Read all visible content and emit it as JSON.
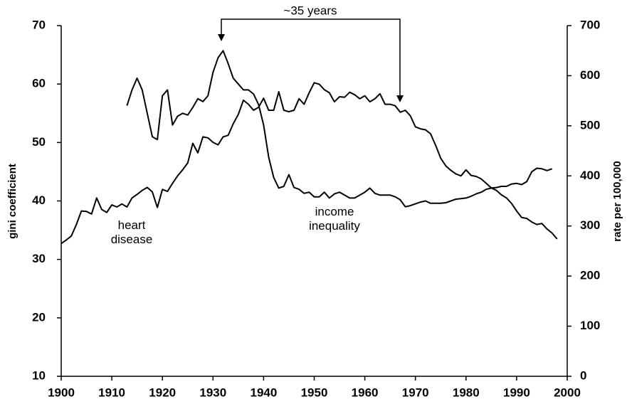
{
  "chart_data": {
    "type": "line",
    "annotation": "~35 years",
    "ylabel": "gini coefficient",
    "y2label": "rate per 100,000",
    "x": [
      1900,
      1901,
      1902,
      1903,
      1904,
      1905,
      1906,
      1907,
      1908,
      1909,
      1910,
      1911,
      1912,
      1913,
      1914,
      1915,
      1916,
      1917,
      1918,
      1919,
      1920,
      1921,
      1922,
      1923,
      1924,
      1925,
      1926,
      1927,
      1928,
      1929,
      1930,
      1931,
      1932,
      1933,
      1934,
      1935,
      1936,
      1937,
      1938,
      1939,
      1940,
      1941,
      1942,
      1943,
      1944,
      1945,
      1946,
      1947,
      1948,
      1949,
      1950,
      1951,
      1952,
      1953,
      1954,
      1955,
      1956,
      1957,
      1958,
      1959,
      1960,
      1961,
      1962,
      1963,
      1964,
      1965,
      1966,
      1967,
      1968,
      1969,
      1970,
      1971,
      1972,
      1973,
      1974,
      1975,
      1976,
      1977,
      1978,
      1979,
      1980,
      1981,
      1982,
      1983,
      1984,
      1985,
      1986,
      1987,
      1988,
      1989,
      1990,
      1991,
      1992,
      1993,
      1994,
      1995,
      1996,
      1997,
      1998
    ],
    "series": [
      {
        "name": "heart disease",
        "color": "#000000",
        "axis": "y2",
        "values": [
          265,
          272,
          280,
          303,
          330,
          329,
          324,
          356,
          333,
          327,
          342,
          338,
          344,
          338,
          356,
          363,
          371,
          377,
          368,
          337,
          373,
          369,
          385,
          400,
          412,
          426,
          465,
          446,
          478,
          476,
          467,
          462,
          478,
          481,
          504,
          523,
          551,
          543,
          531,
          537,
          555,
          531,
          531,
          568,
          531,
          528,
          531,
          554,
          543,
          566,
          586,
          583,
          572,
          566,
          548,
          558,
          557,
          567,
          562,
          554,
          560,
          548,
          554,
          564,
          543,
          543,
          540,
          527,
          531,
          520,
          498,
          494,
          492,
          484,
          461,
          435,
          420,
          411,
          404,
          400,
          412,
          401,
          399,
          394,
          385,
          376,
          371,
          362,
          356,
          345,
          330,
          317,
          315,
          308,
          303,
          305,
          294,
          286,
          274
        ]
      },
      {
        "name": "income inequality",
        "color": "#000000",
        "values": [
          null,
          null,
          null,
          null,
          null,
          null,
          null,
          null,
          null,
          null,
          null,
          null,
          null,
          56.3,
          59,
          61,
          59,
          55,
          51,
          50.5,
          58,
          59,
          53,
          54.5,
          55,
          54.7,
          56,
          57.5,
          57,
          58,
          62,
          64.5,
          65.7,
          63.5,
          61,
          60,
          59,
          59,
          58.3,
          56.5,
          53,
          47.5,
          44,
          42.2,
          42.5,
          44.5,
          42.3,
          42,
          41.3,
          41.5,
          40.7,
          40.7,
          41.5,
          40.5,
          41.2,
          41.5,
          41,
          40.5,
          40.5,
          41,
          41.5,
          42.2,
          41.3,
          41,
          41,
          41,
          40.7,
          40.2,
          39,
          39.2,
          39.5,
          39.8,
          40,
          39.6,
          39.6,
          39.6,
          39.7,
          40,
          40.3,
          40.4,
          40.5,
          40.8,
          41.2,
          41.5,
          42,
          42.2,
          42.3,
          42.5,
          42.5,
          42.9,
          43,
          42.8,
          43.3,
          45,
          45.6,
          45.5,
          45.2,
          45.5,
          null
        ]
      }
    ],
    "xlim": [
      1900,
      2000
    ],
    "xticks": [
      1900,
      1910,
      1920,
      1930,
      1940,
      1950,
      1960,
      1970,
      1980,
      1990,
      2000
    ],
    "ylim": [
      10,
      70
    ],
    "yticks": [
      10,
      20,
      30,
      40,
      50,
      60,
      70
    ],
    "y2lim": [
      0,
      700
    ],
    "y2ticks": [
      0,
      100,
      200,
      300,
      400,
      500,
      600,
      700
    ],
    "grid": false
  }
}
